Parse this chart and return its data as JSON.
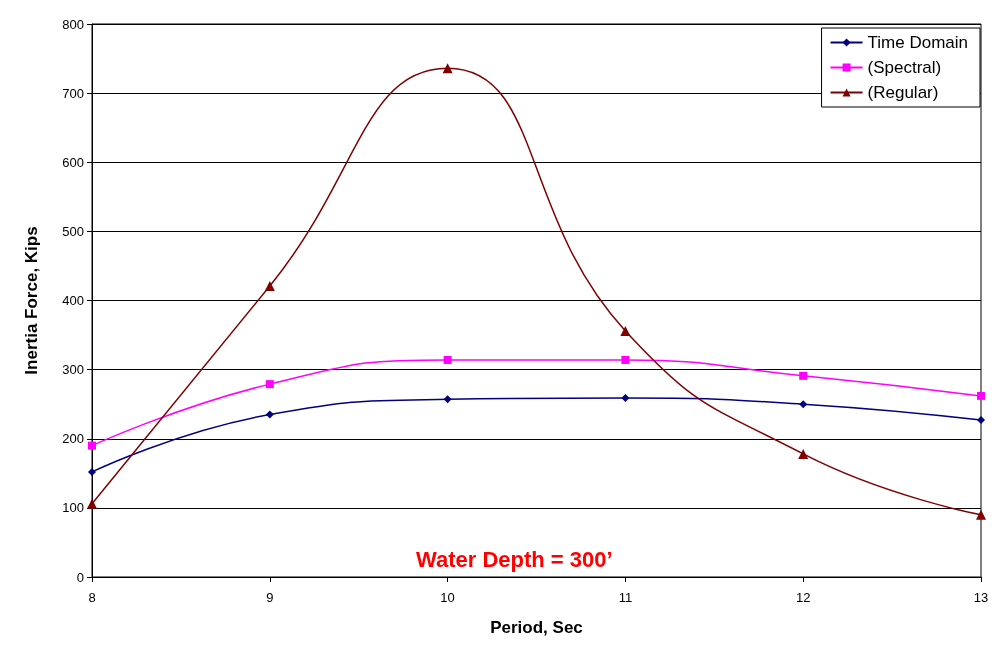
{
  "chart_data": {
    "type": "line",
    "xlabel": "Period, Sec",
    "ylabel": "Inertia Force, Kips",
    "x": [
      8,
      9,
      10,
      11,
      12,
      13
    ],
    "series": [
      {
        "name": "Time Domain",
        "color": "#000080",
        "marker": "diamond",
        "values": [
          152,
          235,
          257,
          259,
          250,
          227
        ]
      },
      {
        "name": "(Spectral)",
        "color": "#ff00ff",
        "marker": "square",
        "values": [
          190,
          279,
          314,
          314,
          291,
          262
        ]
      },
      {
        "name": "(Regular)",
        "color": "#800000",
        "marker": "triangle",
        "values": [
          106,
          421,
          736,
          356,
          178,
          90
        ]
      }
    ],
    "xlim": [
      8,
      13
    ],
    "xticks": [
      8,
      9,
      10,
      11,
      12,
      13
    ],
    "ylim": [
      0,
      800
    ],
    "yticks": [
      0,
      100,
      200,
      300,
      400,
      500,
      600,
      700,
      800
    ],
    "grid": "y",
    "legend": "top right",
    "annotations": [
      "Water Depth = 300’"
    ]
  }
}
